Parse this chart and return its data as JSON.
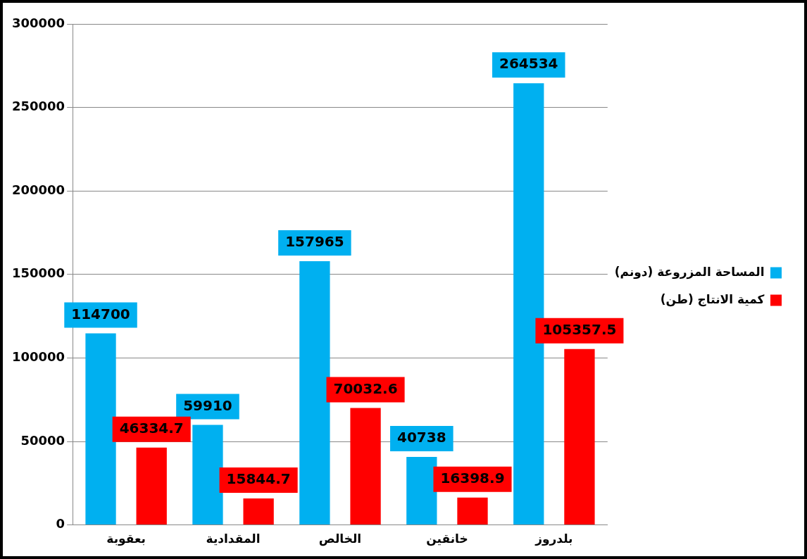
{
  "chart_data": {
    "type": "bar",
    "categories": [
      "بعقوبة",
      "المقدادية",
      "الخالص",
      "خانقين",
      "بلدروز"
    ],
    "series": [
      {
        "name": "المساحة المزروعة (دونم)",
        "color": "#00b0f0",
        "values": [
          114700,
          59910,
          157965,
          40738,
          264534
        ]
      },
      {
        "name": "كمية الانتاج (طن)",
        "color": "#ff0000",
        "values": [
          46334.7,
          15844.7,
          70032.6,
          16398.9,
          105357.5
        ]
      }
    ],
    "ylim": [
      0,
      300000
    ],
    "yticks": [
      0,
      50000,
      100000,
      150000,
      200000,
      250000,
      300000
    ],
    "grid": "y",
    "legend": "right",
    "data_labels": true
  }
}
